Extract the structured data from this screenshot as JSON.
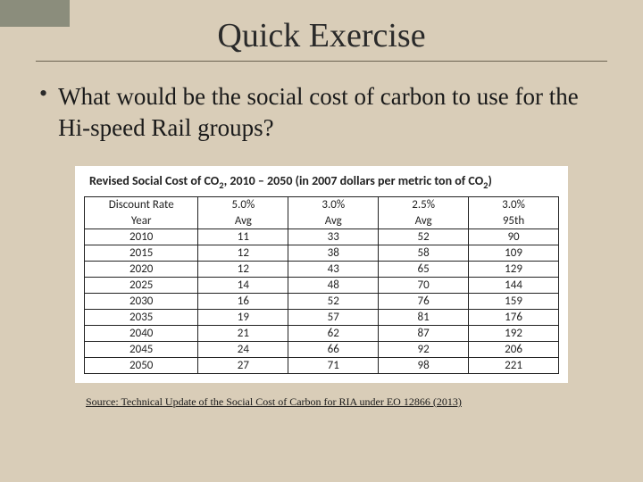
{
  "slide": {
    "title": "Quick Exercise",
    "bullet": "What would be the social cost of carbon to use for the Hi-speed Rail groups?",
    "source": "Source: Technical Update of the Social Cost of Carbon for RIA under EO 12866 (2013)"
  },
  "table": {
    "type": "table",
    "title_prefix": "Revised Social Cost of CO",
    "title_sub": "2",
    "title_mid": ", 2010 – 2050 (in 2007 dollars per metric ton of CO",
    "title_sub2": "2",
    "title_suffix": ")",
    "header_row1": [
      "Discount Rate",
      "5.0%",
      "3.0%",
      "2.5%",
      "3.0%"
    ],
    "header_row2": [
      "Year",
      "Avg",
      "Avg",
      "Avg",
      "95th"
    ],
    "rows": [
      [
        "2010",
        "11",
        "33",
        "52",
        "90"
      ],
      [
        "2015",
        "12",
        "38",
        "58",
        "109"
      ],
      [
        "2020",
        "12",
        "43",
        "65",
        "129"
      ],
      [
        "2025",
        "14",
        "48",
        "70",
        "144"
      ],
      [
        "2030",
        "16",
        "52",
        "76",
        "159"
      ],
      [
        "2035",
        "19",
        "57",
        "81",
        "176"
      ],
      [
        "2040",
        "21",
        "62",
        "87",
        "192"
      ],
      [
        "2045",
        "24",
        "66",
        "92",
        "206"
      ],
      [
        "2050",
        "27",
        "71",
        "98",
        "221"
      ]
    ],
    "col_widths": [
      "24%",
      "19%",
      "19%",
      "19%",
      "19%"
    ],
    "background_color": "#ffffff",
    "border_color": "#222222",
    "font_family": "Calibri",
    "font_size_pt": 10
  },
  "style": {
    "slide_background": "#d9cdb8",
    "accent_color": "#4a5a4a",
    "title_fontsize_pt": 28,
    "body_fontsize_pt": 20,
    "source_fontsize_pt": 9
  }
}
